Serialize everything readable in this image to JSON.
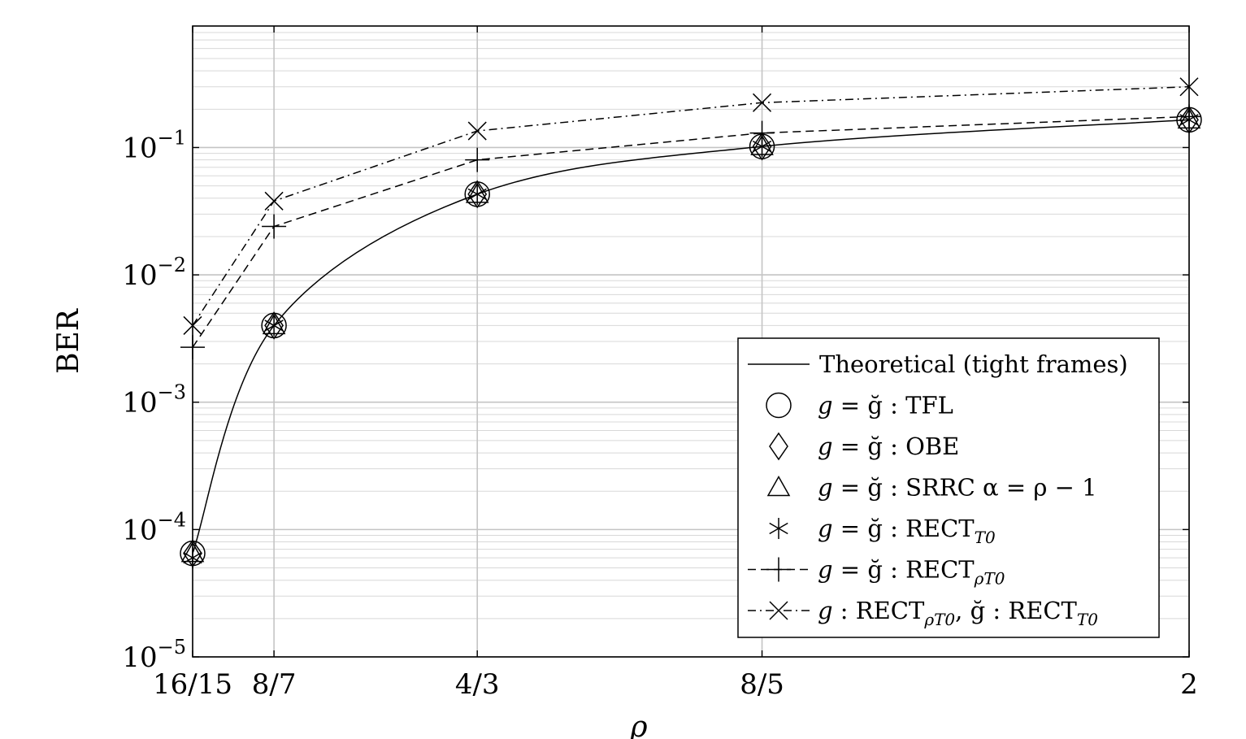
{
  "chart_data": {
    "type": "line",
    "xlabel": "ρ",
    "ylabel": "BER",
    "x_scale": "linear",
    "y_scale": "log",
    "xlim": [
      1.0667,
      2.0
    ],
    "ylim": [
      1e-05,
      0.9
    ],
    "grid": true,
    "legend_position": "bottom-right",
    "x_ticks": [
      {
        "value": 1.0667,
        "label": "16/15"
      },
      {
        "value": 1.1429,
        "label": "8/7"
      },
      {
        "value": 1.3333,
        "label": "4/3"
      },
      {
        "value": 1.6,
        "label": "8/5"
      },
      {
        "value": 2.0,
        "label": "2"
      }
    ],
    "y_ticks": [
      {
        "value": 1e-05,
        "base": "10",
        "exp": "−5"
      },
      {
        "value": 0.0001,
        "base": "10",
        "exp": "−4"
      },
      {
        "value": 0.001,
        "base": "10",
        "exp": "−3"
      },
      {
        "value": 0.01,
        "base": "10",
        "exp": "−2"
      },
      {
        "value": 0.1,
        "base": "10",
        "exp": "−1"
      }
    ],
    "x": [
      1.0667,
      1.1429,
      1.3333,
      1.6,
      2.0
    ],
    "series": [
      {
        "name": "Theoretical (tight frames)",
        "marker": "none",
        "dash": "solid",
        "smooth": true,
        "values": [
          6.5e-05,
          0.004,
          0.043,
          0.102,
          0.165
        ]
      },
      {
        "name": "g = ğ : TFL",
        "marker": "circle",
        "dash": "none",
        "values": [
          6.5e-05,
          0.004,
          0.043,
          0.102,
          0.165
        ]
      },
      {
        "name": "g = ğ : OBE",
        "marker": "diamond",
        "dash": "none",
        "values": [
          6.5e-05,
          0.004,
          0.043,
          0.102,
          0.165
        ]
      },
      {
        "name": "g = ğ : SRRC α = ρ − 1",
        "marker": "triangle",
        "dash": "none",
        "values": [
          6.5e-05,
          0.004,
          0.043,
          0.102,
          0.165
        ]
      },
      {
        "name": "g = ğ : RECT_T0",
        "marker": "asterisk",
        "dash": "none",
        "values": [
          6e-05,
          0.004,
          0.043,
          0.102,
          0.165
        ]
      },
      {
        "name": "g = ğ : RECT_ρT0",
        "marker": "plus",
        "dash": "dashed",
        "values": [
          0.0027,
          0.024,
          0.08,
          0.13,
          0.175
        ]
      },
      {
        "name": "g : RECT_ρT0, ğ : RECT_T0",
        "marker": "cross",
        "dash": "dashdot",
        "values": [
          0.004,
          0.038,
          0.135,
          0.225,
          0.3
        ]
      }
    ],
    "legend": [
      {
        "marker": "line",
        "pre": "Theoretical (tight frames)",
        "g": "",
        "eq": "",
        "rest": "",
        "sub": "",
        "rest2": "",
        "sub2": ""
      },
      {
        "marker": "circle",
        "pre": "",
        "g": "g",
        "eq": " = ğ ",
        "rest": ": TFL",
        "sub": "",
        "rest2": "",
        "sub2": ""
      },
      {
        "marker": "diamond",
        "pre": "",
        "g": "g",
        "eq": " = ğ ",
        "rest": ": OBE",
        "sub": "",
        "rest2": "",
        "sub2": ""
      },
      {
        "marker": "triangle",
        "pre": "",
        "g": "g",
        "eq": " = ğ ",
        "rest": ": SRRC α = ρ − 1",
        "sub": "",
        "rest2": "",
        "sub2": ""
      },
      {
        "marker": "asterisk",
        "pre": "",
        "g": "g",
        "eq": " = ğ ",
        "rest": ": RECT",
        "sub": "T0",
        "rest2": "",
        "sub2": ""
      },
      {
        "marker": "plus-dashed",
        "pre": "",
        "g": "g",
        "eq": " = ğ ",
        "rest": ": RECT",
        "sub": "ρT0",
        "rest2": "",
        "sub2": ""
      },
      {
        "marker": "cross-dashdot",
        "pre": "",
        "g": "g",
        "eq": " ",
        "rest": ": RECT",
        "sub": "ρT0",
        "rest2": ", ğ : RECT",
        "sub2": "T0"
      }
    ]
  }
}
